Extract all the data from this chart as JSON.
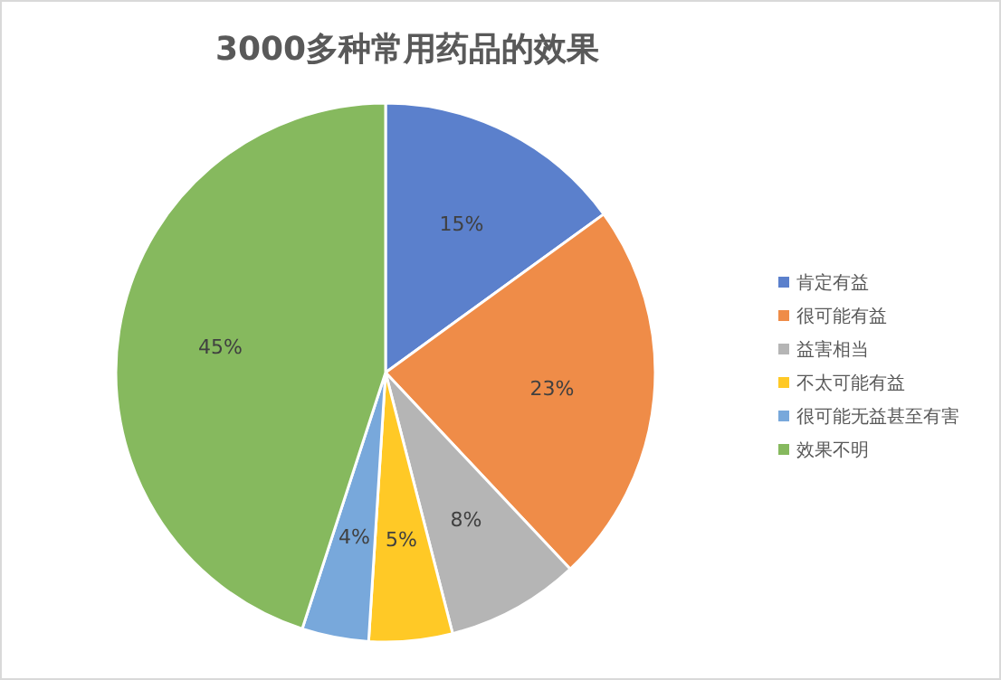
{
  "chart_data": {
    "type": "pie",
    "title": "3000多种常用药品的效果",
    "categories": [
      "肯定有益",
      "很可能有益",
      "益害相当",
      "不太可能有益",
      "很可能无益甚至有害",
      "效果不明"
    ],
    "values": [
      15,
      23,
      8,
      5,
      4,
      45
    ],
    "value_labels": [
      "15%",
      "23%",
      "8%",
      "5%",
      "4%",
      "45%"
    ],
    "colors": [
      "#5b80cc",
      "#ef8c48",
      "#b5b5b5",
      "#ffc926",
      "#78a8db",
      "#86b95e"
    ],
    "legend": "right"
  }
}
